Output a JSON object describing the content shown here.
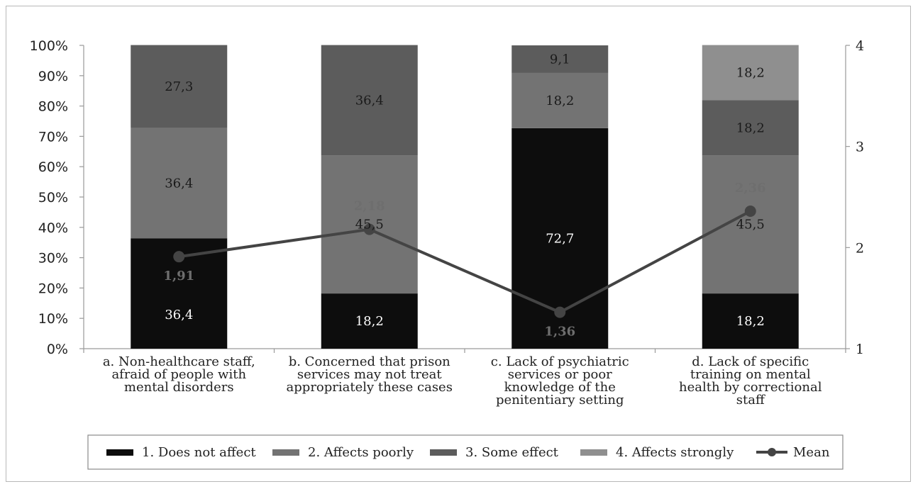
{
  "chart_data": {
    "type": "bar",
    "stacked": true,
    "categories": [
      [
        "a. Non-healthcare staff,",
        "afraid of people with",
        "mental disorders"
      ],
      [
        "b. Concerned that prison",
        "services may not treat",
        "appropriately these cases"
      ],
      [
        "c. Lack of psychiatric",
        "services or poor",
        "knowledge of the",
        "penitentiary setting"
      ],
      [
        "d. Lack of specific",
        "training on mental",
        "health by correctional",
        "staff"
      ]
    ],
    "series": [
      {
        "name": "1. Does not affect",
        "color": "#0d0d0d",
        "label_color": "#ffffff",
        "values": [
          36.4,
          18.2,
          72.7,
          18.2
        ],
        "labels": [
          "36,4",
          "18,2",
          "72,7",
          "18,2"
        ]
      },
      {
        "name": "2. Affects poorly",
        "color": "#737373",
        "label_color": "#1a1a1a",
        "values": [
          36.4,
          45.5,
          18.2,
          45.5
        ],
        "labels": [
          "36,4",
          "45,5",
          "18,2",
          "45,5"
        ]
      },
      {
        "name": "3. Some effect",
        "color": "#5c5c5c",
        "label_color": "#1a1a1a",
        "values": [
          27.3,
          36.4,
          9.1,
          18.2
        ],
        "labels": [
          "27,3",
          "36,4",
          "9,1",
          "18,2"
        ]
      },
      {
        "name": "4. Affects strongly",
        "color": "#8f8f8f",
        "label_color": "#1a1a1a",
        "values": [
          0,
          0,
          0,
          18.2
        ],
        "labels": [
          "",
          "",
          "",
          "18,2"
        ]
      }
    ],
    "mean": {
      "name": "Mean",
      "color": "#444444",
      "values": [
        1.91,
        2.18,
        1.36,
        2.36
      ],
      "labels": [
        "1,91",
        "2,18",
        "1,36",
        "2,36"
      ]
    },
    "y_left": {
      "ticks": [
        "0%",
        "10%",
        "20%",
        "30%",
        "40%",
        "50%",
        "60%",
        "70%",
        "80%",
        "90%",
        "100%"
      ],
      "ylim": [
        0,
        100
      ]
    },
    "y_right": {
      "ticks": [
        "1",
        "2",
        "3",
        "4"
      ],
      "ylim": [
        1,
        4
      ]
    },
    "legend_position": "bottom",
    "legend": [
      "1. Does not affect",
      "2. Affects poorly",
      "3. Some effect",
      "4. Affects strongly",
      "Mean"
    ]
  }
}
